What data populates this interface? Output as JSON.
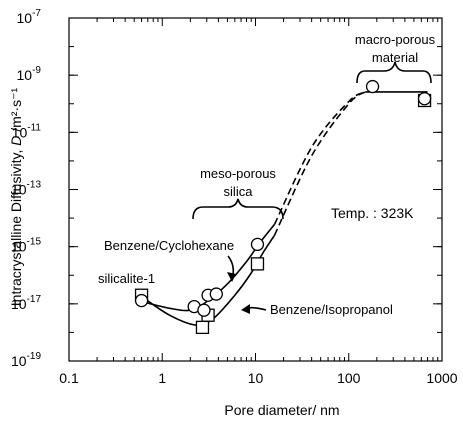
{
  "chart_data": {
    "type": "scatter",
    "x_scale": "log",
    "y_scale": "log",
    "xlim": [
      0.1,
      1000
    ],
    "ylim": [
      1e-19,
      1e-07
    ],
    "xlabel": "Pore diameter/ nm",
    "ylabel_prefix": "Intracrystalline Diffusivity, ",
    "ylabel_var": "D",
    "ylabel_unit": " /m²·s⁻¹",
    "x_ticks": [
      {
        "value": 0.1,
        "label": "0.1"
      },
      {
        "value": 1,
        "label": "1"
      },
      {
        "value": 10,
        "label": "10"
      },
      {
        "value": 100,
        "label": "100"
      },
      {
        "value": 1000,
        "label": "1000"
      }
    ],
    "y_ticks": [
      {
        "value": 1e-19,
        "mant": "10",
        "exp": "-19"
      },
      {
        "value": 1e-17,
        "mant": "10",
        "exp": "-17"
      },
      {
        "value": 1e-15,
        "mant": "10",
        "exp": "-15"
      },
      {
        "value": 1e-13,
        "mant": "10",
        "exp": "-13"
      },
      {
        "value": 1e-11,
        "mant": "10",
        "exp": "-11"
      },
      {
        "value": 1e-09,
        "mant": "10",
        "exp": "-9"
      },
      {
        "value": 1e-07,
        "mant": "10",
        "exp": "-7"
      }
    ],
    "series": [
      {
        "name": "Benzene/Cyclohexane",
        "marker": "circle",
        "points": [
          {
            "x": 0.6,
            "y": 1.3e-17
          },
          {
            "x": 2.2,
            "y": 8e-18
          },
          {
            "x": 2.8,
            "y": 6e-18
          },
          {
            "x": 3.1,
            "y": 2e-17
          },
          {
            "x": 3.8,
            "y": 2.2e-17
          },
          {
            "x": 10.5,
            "y": 1.2e-15
          },
          {
            "x": 180,
            "y": 4e-10
          },
          {
            "x": 650,
            "y": 1.5e-10
          }
        ],
        "curve": [
          [
            0.6,
            1.2e-17
          ],
          [
            1.2,
            7e-18
          ],
          [
            2,
            6e-18
          ],
          [
            3,
            1.2e-17
          ],
          [
            5,
            5e-17
          ],
          [
            8,
            3e-16
          ],
          [
            11,
            1.3e-15
          ],
          [
            16,
            6e-15
          ]
        ],
        "curve_dashed": [
          [
            16,
            6e-15
          ],
          [
            40,
            3e-12
          ],
          [
            100,
            1.2e-10
          ],
          [
            150,
            2.6e-10
          ]
        ],
        "curve_plateau": [
          [
            150,
            2.6e-10
          ],
          [
            700,
            2.6e-10
          ]
        ]
      },
      {
        "name": "Benzene/Isopropanol",
        "marker": "square",
        "points": [
          {
            "x": 0.6,
            "y": 2e-17
          },
          {
            "x": 2.7,
            "y": 1.5e-18
          },
          {
            "x": 3.1,
            "y": 4e-18
          },
          {
            "x": 10.5,
            "y": 2.5e-16
          },
          {
            "x": 650,
            "y": 1.3e-10
          }
        ],
        "curve": [
          [
            0.6,
            1.8e-17
          ],
          [
            1.2,
            4e-18
          ],
          [
            2.3,
            1.8e-18
          ],
          [
            3.5,
            3e-18
          ],
          [
            6,
            2e-17
          ],
          [
            9,
            1.2e-16
          ],
          [
            12,
            6e-16
          ],
          [
            16,
            2.5e-15
          ]
        ],
        "curve_dashed": [
          [
            16,
            2.5e-15
          ],
          [
            40,
            1.5e-12
          ],
          [
            100,
            1e-10
          ],
          [
            150,
            2.6e-10
          ]
        ]
      }
    ],
    "annotations": {
      "cyclohexane_label": "Benzene/Cyclohexane",
      "isopropanol_label": "Benzene/Isopropanol",
      "silicalite_label": "silicalite-1",
      "meso_line1": "meso-porous",
      "meso_line2": "silica",
      "macro_line1": "macro-porous",
      "macro_line2": "material",
      "temp_label": "Temp. : 323K"
    }
  }
}
